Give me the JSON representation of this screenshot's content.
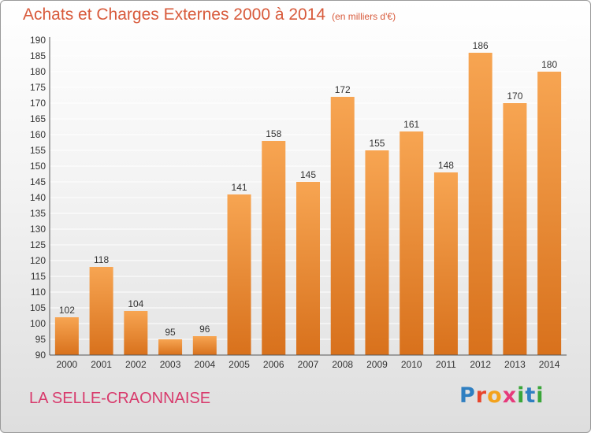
{
  "header": {
    "title": "Achats et Charges Externes 2000 à 2014",
    "subtitle": "(en milliers d'€)"
  },
  "footer": {
    "commune": "LA SELLE-CRAONNAISE",
    "logo": "Proxiti"
  },
  "colors": {
    "bar_top": "#f7a552",
    "bar_bottom": "#d8711c",
    "title": "#d85a3b",
    "commune": "#d83a6c",
    "grid": "#ffffff"
  },
  "chart_data": {
    "type": "bar",
    "title": "Achats et Charges Externes 2000 à 2014",
    "subtitle": "(en milliers d'€)",
    "categories": [
      "2000",
      "2001",
      "2002",
      "2003",
      "2004",
      "2005",
      "2006",
      "2007",
      "2008",
      "2009",
      "2010",
      "2011",
      "2012",
      "2013",
      "2014"
    ],
    "values": [
      102,
      118,
      104,
      95,
      96,
      141,
      158,
      145,
      172,
      155,
      161,
      148,
      186,
      170,
      180
    ],
    "xlabel": "",
    "ylabel": "",
    "ylim": [
      90,
      190
    ],
    "ytick_step": 5,
    "grid": true,
    "legend": "none"
  }
}
